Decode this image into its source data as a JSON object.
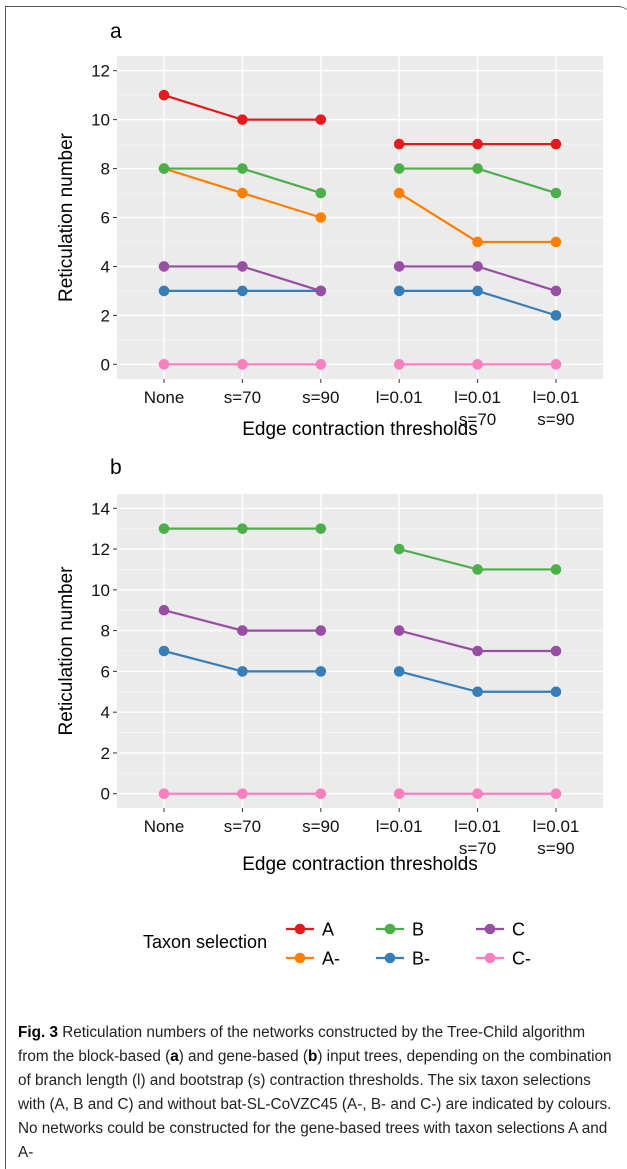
{
  "chart_data": [
    {
      "type": "line",
      "panel": "a",
      "categories": [
        "None",
        "s=70",
        "s=90",
        "l=0.01",
        "l=0.01\ns=70",
        "l=0.01\ns=90"
      ],
      "xlabel": "Edge contraction thresholds",
      "ylabel": "Reticulation number",
      "ylim": [
        -0.6,
        12.6
      ],
      "yticks": [
        0,
        2,
        4,
        6,
        8,
        10,
        12
      ],
      "grid": true,
      "series": [
        {
          "name": "A",
          "color": "#E41A1C",
          "values": [
            11,
            10,
            10,
            9,
            9,
            9
          ]
        },
        {
          "name": "A-",
          "color": "#FF7F00",
          "values": [
            8,
            7,
            6,
            7,
            5,
            5
          ]
        },
        {
          "name": "B",
          "color": "#4DAF4A",
          "values": [
            8,
            8,
            7,
            8,
            8,
            7
          ]
        },
        {
          "name": "B-",
          "color": "#377EB8",
          "values": [
            3,
            3,
            3,
            3,
            3,
            2
          ]
        },
        {
          "name": "C",
          "color": "#984EA3",
          "values": [
            4,
            4,
            3,
            4,
            4,
            3
          ]
        },
        {
          "name": "C-",
          "color": "#F781BF",
          "values": [
            0,
            0,
            0,
            0,
            0,
            0
          ]
        }
      ]
    },
    {
      "type": "line",
      "panel": "b",
      "categories": [
        "None",
        "s=70",
        "s=90",
        "l=0.01",
        "l=0.01\ns=70",
        "l=0.01\ns=90"
      ],
      "xlabel": "Edge contraction thresholds",
      "ylabel": "Reticulation number",
      "ylim": [
        -0.7,
        14.7
      ],
      "yticks": [
        0,
        2,
        4,
        6,
        8,
        10,
        12,
        14
      ],
      "grid": true,
      "series": [
        {
          "name": "B",
          "color": "#4DAF4A",
          "values": [
            13,
            13,
            13,
            12,
            11,
            11
          ]
        },
        {
          "name": "B-",
          "color": "#377EB8",
          "values": [
            7,
            6,
            6,
            6,
            5,
            5
          ]
        },
        {
          "name": "C",
          "color": "#984EA3",
          "values": [
            9,
            8,
            8,
            8,
            7,
            7
          ]
        },
        {
          "name": "C-",
          "color": "#F781BF",
          "values": [
            0,
            0,
            0,
            0,
            0,
            0
          ]
        }
      ]
    }
  ],
  "legend": {
    "title": "Taxon selection",
    "placement": "bottom",
    "items": [
      {
        "name": "A",
        "color": "#E41A1C"
      },
      {
        "name": "A-",
        "color": "#FF7F00"
      },
      {
        "name": "B",
        "color": "#4DAF4A"
      },
      {
        "name": "B-",
        "color": "#377EB8"
      },
      {
        "name": "C",
        "color": "#984EA3"
      },
      {
        "name": "C-",
        "color": "#F781BF"
      }
    ]
  },
  "caption": {
    "label": "Fig. 3",
    "t1": "  Reticulation numbers of the networks constructed by the Tree-Child algorithm from the block-based (",
    "b1": "a",
    "t2": ") and gene-based (",
    "b2": "b",
    "t3": ") input trees, depending on the combination of branch length (l) and bootstrap (s) contraction thresholds. The six taxon selections with (A, B and C) and without bat-SL-CoVZC45 (A-, B- and C-) are indicated by colours. No networks could be constructed for the gene-based trees with taxon selections A and A-"
  }
}
